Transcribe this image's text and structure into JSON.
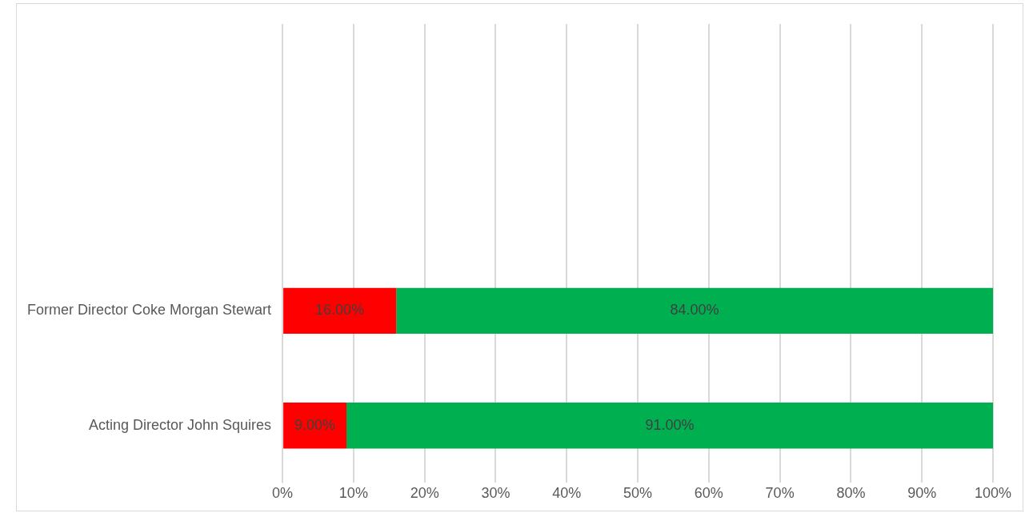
{
  "chart_data": {
    "type": "bar",
    "orientation": "horizontal",
    "stacked": true,
    "categories": [
      null,
      null,
      "Former Director Coke Morgan Stewart",
      "Acting Director John Squires"
    ],
    "series": [
      {
        "color": "#ff0000",
        "values": [
          null,
          null,
          16,
          9
        ],
        "value_labels": [
          null,
          null,
          "16.00%",
          "9.00%"
        ]
      },
      {
        "color": "#00b050",
        "values": [
          null,
          null,
          84,
          91
        ],
        "value_labels": [
          null,
          null,
          "84.00%",
          "91.00%"
        ]
      }
    ],
    "xlim": [
      0,
      100
    ],
    "xticks": [
      {
        "value": 0,
        "label": "0%"
      },
      {
        "value": 10,
        "label": "10%"
      },
      {
        "value": 20,
        "label": "20%"
      },
      {
        "value": 30,
        "label": "30%"
      },
      {
        "value": 40,
        "label": "40%"
      },
      {
        "value": 50,
        "label": "50%"
      },
      {
        "value": 60,
        "label": "60%"
      },
      {
        "value": 70,
        "label": "70%"
      },
      {
        "value": 80,
        "label": "80%"
      },
      {
        "value": 90,
        "label": "90%"
      },
      {
        "value": 100,
        "label": "100%"
      }
    ],
    "grid": "x",
    "legend": false
  }
}
